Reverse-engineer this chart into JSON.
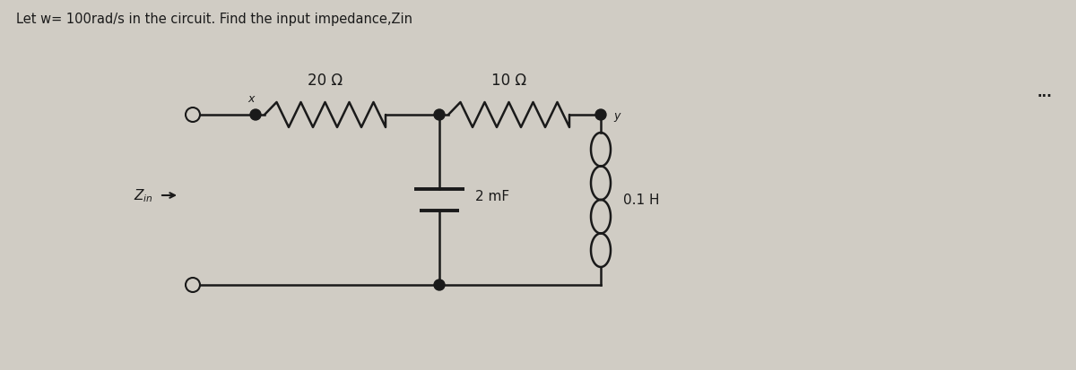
{
  "title": "Let w= 100rad/s in the circuit. Find the input impedance,Zin",
  "title_fontsize": 10.5,
  "bg_color": "#d0ccc4",
  "line_color": "#1a1a1a",
  "line_width": 1.8,
  "component_lw": 1.8,
  "text_color": "#1a1a1a",
  "dots_text": "...",
  "label_20ohm": "20 Ω",
  "label_10ohm": "10 Ω",
  "label_2mF": "2 mF",
  "label_01H": "0.1 H",
  "label_x": "x",
  "label_y": "y"
}
